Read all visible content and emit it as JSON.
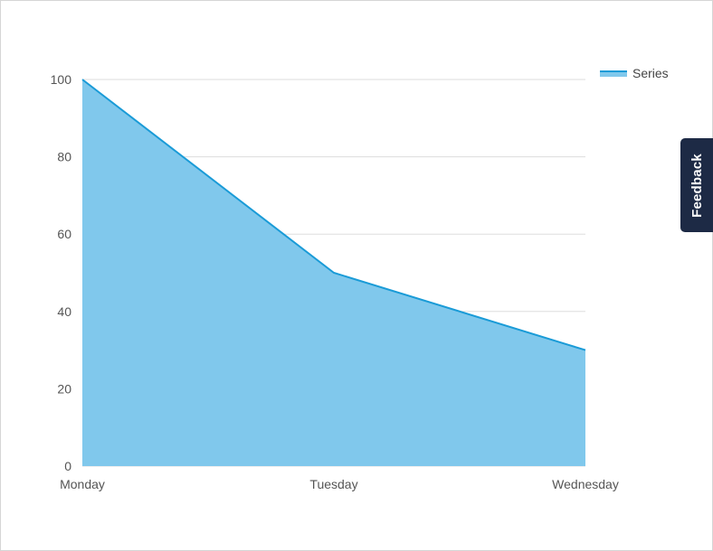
{
  "chart_data": {
    "type": "area",
    "categories": [
      "Monday",
      "Tuesday",
      "Wednesday"
    ],
    "series": [
      {
        "name": "Series",
        "values": [
          100,
          50,
          30
        ]
      }
    ],
    "ylim": [
      0,
      100
    ],
    "yticks": [
      0,
      20,
      40,
      60,
      80,
      100
    ],
    "grid": true,
    "legend": "top-right",
    "colors": {
      "line": "#1a9bd7",
      "fill": "#80c8ec",
      "grid": "#dddddd"
    }
  },
  "feedback": {
    "label": "Feedback"
  }
}
